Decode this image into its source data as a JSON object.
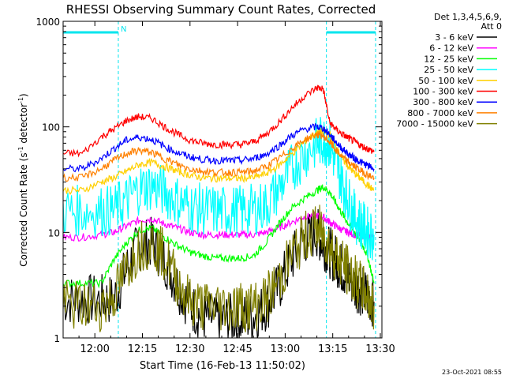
{
  "chart_data": {
    "type": "line",
    "title": "RHESSI Observing Summary Count Rates, Corrected",
    "xlabel": "Start Time (16-Feb-13 11:50:02)",
    "ylabel_main": "Corrected Count Rate (s",
    "ylabel_sup1": "-1",
    "ylabel_mid": " detector",
    "ylabel_sup2": "-1",
    "ylabel_end": ")",
    "yscale": "log",
    "ylim": [
      1,
      1000
    ],
    "xlim_minutes": [
      0,
      100.5
    ],
    "x_ticks": [
      {
        "label": "12:00",
        "minutes": 10
      },
      {
        "label": "12:15",
        "minutes": 25
      },
      {
        "label": "12:30",
        "minutes": 40
      },
      {
        "label": "12:45",
        "minutes": 55
      },
      {
        "label": "13:00",
        "minutes": 70
      },
      {
        "label": "13:15",
        "minutes": 85
      },
      {
        "label": "13:30",
        "minutes": 100
      }
    ],
    "y_ticks": [
      {
        "label": "1",
        "value": 1
      },
      {
        "label": "10",
        "value": 10
      },
      {
        "label": "100",
        "value": 100
      },
      {
        "label": "1000",
        "value": 1000
      }
    ],
    "legend_header": [
      "Det 1,3,4,5,6,9,",
      "Att 0"
    ],
    "legend_placement": "right",
    "night_marker_label": "N",
    "night_intervals_minutes": [
      [
        0,
        17.4
      ],
      [
        83,
        98.5
      ]
    ],
    "timestamp": "23-Oct-2021 08:55",
    "x_minutes": [
      0,
      6,
      12,
      16,
      20,
      24,
      28,
      32,
      36,
      40,
      44,
      48,
      52,
      56,
      60,
      64,
      68,
      72,
      76,
      80,
      82,
      84,
      86,
      88,
      90,
      92,
      94,
      96,
      98
    ],
    "series": [
      {
        "name": "3 - 6 keV",
        "color": "#000000",
        "values": [
          2.3,
          2.3,
          2.3,
          2.3,
          4.5,
          7.5,
          8.0,
          5.5,
          3.2,
          2.0,
          1.6,
          1.5,
          1.5,
          1.5,
          1.6,
          2.0,
          3.0,
          5.5,
          8.5,
          10.0,
          8.0,
          6.5,
          5.5,
          4.5,
          3.8,
          3.2,
          2.8,
          2.5,
          2.2
        ]
      },
      {
        "name": "6 - 12 keV",
        "color": "#ff00ff",
        "values": [
          9.0,
          9.0,
          9.5,
          10.0,
          11.5,
          13.0,
          13.5,
          12.0,
          11.0,
          10.0,
          9.5,
          9.5,
          9.5,
          9.5,
          9.5,
          10.0,
          11.0,
          12.5,
          14.0,
          14.5,
          14.0,
          12.5,
          11.5,
          10.5,
          10.0,
          9.5,
          9.3,
          9.2,
          9.0
        ]
      },
      {
        "name": "12 - 25 keV",
        "color": "#00ff00",
        "values": [
          3.3,
          3.3,
          3.3,
          5.5,
          8.0,
          10.5,
          11.0,
          9.0,
          7.5,
          6.5,
          6.0,
          5.7,
          5.7,
          5.7,
          6.0,
          8.0,
          12.0,
          17.0,
          21.0,
          25.0,
          27.0,
          24.0,
          19.0,
          15.0,
          12.0,
          10.0,
          8.0,
          6.0,
          3.3
        ]
      },
      {
        "name": "25 - 50 keV",
        "color": "#00ffff",
        "values": [
          16.0,
          16.0,
          16.0,
          16.0,
          20.0,
          26.0,
          28.0,
          24.0,
          20.0,
          17.5,
          16.5,
          16.0,
          16.0,
          16.0,
          16.5,
          18.0,
          26.0,
          40.0,
          55.0,
          70.0,
          75.0,
          70.0,
          45.0,
          30.0,
          20.0,
          14.0,
          12.0,
          10.0,
          9.5
        ]
      },
      {
        "name": "50 - 100 keV",
        "color": "#ffd000",
        "values": [
          25.0,
          25.0,
          30.0,
          33.0,
          38.0,
          44.0,
          46.0,
          42.0,
          38.0,
          35.0,
          33.0,
          32.5,
          32.5,
          32.5,
          33.0,
          36.0,
          43.0,
          55.0,
          72.0,
          88.0,
          92.0,
          85.0,
          65.0,
          50.0,
          42.0,
          36.0,
          32.0,
          28.0,
          25.0
        ]
      },
      {
        "name": "100 - 300 keV",
        "color": "#ff0000",
        "values": [
          56.0,
          56.0,
          80.0,
          95.0,
          115.0,
          125.0,
          120.0,
          100.0,
          85.0,
          75.0,
          70.0,
          68.0,
          68.0,
          68.0,
          72.0,
          85.0,
          110.0,
          150.0,
          195.0,
          235.0,
          230.0,
          110.0,
          95.0,
          85.0,
          78.0,
          72.0,
          66.0,
          62.0,
          58.0
        ]
      },
      {
        "name": "300 - 800 keV",
        "color": "#0000ff",
        "values": [
          40.0,
          40.0,
          50.0,
          62.0,
          75.0,
          80.0,
          76.0,
          65.0,
          57.0,
          52.0,
          49.0,
          48.0,
          48.0,
          48.0,
          50.0,
          55.0,
          66.0,
          82.0,
          95.0,
          100.0,
          97.0,
          85.0,
          72.0,
          62.0,
          55.0,
          50.0,
          46.0,
          43.0,
          40.0
        ]
      },
      {
        "name": "800 - 7000 keV",
        "color": "#ff8000",
        "values": [
          33.0,
          33.0,
          40.0,
          48.0,
          56.0,
          60.0,
          57.0,
          50.0,
          44.0,
          40.0,
          38.0,
          37.0,
          37.0,
          37.0,
          38.0,
          42.0,
          50.0,
          62.0,
          75.0,
          85.0,
          82.0,
          72.0,
          60.0,
          52.0,
          46.0,
          42.0,
          38.0,
          35.0,
          33.0
        ]
      },
      {
        "name": "7000 - 15000 keV",
        "color": "#808000",
        "values": [
          2.0,
          2.0,
          2.0,
          2.5,
          4.5,
          7.5,
          8.0,
          6.0,
          3.5,
          2.2,
          2.0,
          2.0,
          2.0,
          2.0,
          2.0,
          2.3,
          3.5,
          6.0,
          9.0,
          11.0,
          9.5,
          7.5,
          6.0,
          5.0,
          4.2,
          3.5,
          3.0,
          2.5,
          2.0
        ]
      }
    ]
  }
}
